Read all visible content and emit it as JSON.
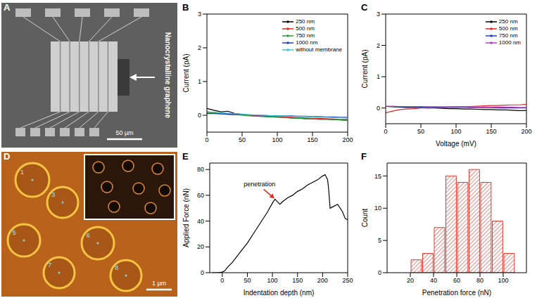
{
  "chart_data": [
    {
      "panel": "B",
      "type": "line",
      "ylabel": "Current (pA)",
      "xlim": [
        0,
        200
      ],
      "xticks": [
        0,
        50,
        100,
        150,
        200
      ],
      "ylim": [
        -0.5,
        3
      ],
      "yticks": [
        0,
        1,
        2,
        3
      ],
      "legend": "upper right",
      "x": [
        0,
        10,
        20,
        30,
        40,
        50,
        60,
        70,
        80,
        90,
        100,
        110,
        120,
        130,
        140,
        150,
        160,
        170,
        180,
        190,
        200
      ],
      "series": [
        {
          "name": "250 nm",
          "color": "#000000",
          "values": [
            0.2,
            0.15,
            0.1,
            0.12,
            0.05,
            0.03,
            0.0,
            -0.02,
            -0.03,
            -0.05,
            -0.05,
            -0.06,
            -0.08,
            -0.08,
            -0.1,
            -0.1,
            -0.12,
            -0.12,
            -0.13,
            -0.14,
            -0.15
          ]
        },
        {
          "name": "500 nm",
          "color": "#e8251f",
          "values": [
            0.1,
            0.08,
            0.06,
            0.05,
            0.04,
            0.02,
            0.0,
            -0.01,
            -0.02,
            -0.03,
            -0.04,
            -0.05,
            -0.06,
            -0.07,
            -0.08,
            -0.09,
            -0.09,
            -0.1,
            -0.11,
            -0.12,
            -0.12
          ]
        },
        {
          "name": "750 nm",
          "color": "#2e9e3a",
          "values": [
            0.08,
            0.07,
            0.05,
            0.03,
            0.02,
            0.0,
            -0.02,
            -0.03,
            -0.04,
            -0.05,
            -0.06,
            -0.07,
            -0.08,
            -0.09,
            -0.1,
            -0.11,
            -0.12,
            -0.12,
            -0.13,
            -0.14,
            -0.15
          ]
        },
        {
          "name": "1000 nm",
          "color": "#1f3fbf",
          "values": [
            0.05,
            0.05,
            0.04,
            0.03,
            0.02,
            0.02,
            0.01,
            0.0,
            0.0,
            -0.01,
            -0.01,
            -0.02,
            -0.02,
            -0.03,
            -0.03,
            -0.04,
            -0.04,
            -0.05,
            -0.05,
            -0.06,
            -0.06
          ]
        },
        {
          "name": "without membrane",
          "color": "#35c6d6",
          "values": [
            0.1,
            0.09,
            0.07,
            0.06,
            0.05,
            0.03,
            0.02,
            0.01,
            0.0,
            -0.01,
            -0.02,
            -0.02,
            -0.03,
            -0.04,
            -0.04,
            -0.05,
            -0.06,
            -0.06,
            -0.07,
            -0.07,
            -0.08
          ]
        }
      ]
    },
    {
      "panel": "C",
      "type": "line",
      "xlabel": "Voltage (mV)",
      "ylabel": "Current (pA)",
      "xlim": [
        0,
        200
      ],
      "xticks": [
        0,
        50,
        100,
        150,
        200
      ],
      "ylim": [
        -0.5,
        3
      ],
      "yticks": [
        0,
        1,
        2,
        3
      ],
      "legend": "upper right",
      "x": [
        0,
        10,
        20,
        30,
        40,
        50,
        60,
        70,
        80,
        90,
        100,
        110,
        120,
        130,
        140,
        150,
        160,
        170,
        180,
        190,
        200
      ],
      "series": [
        {
          "name": "250 nm",
          "color": "#000000",
          "values": [
            0.05,
            0.04,
            0.03,
            0.02,
            0.02,
            0.01,
            0.0,
            0.0,
            -0.01,
            -0.02,
            -0.02,
            -0.03,
            -0.03,
            -0.04,
            -0.05,
            -0.05,
            -0.06,
            -0.06,
            -0.07,
            -0.08,
            -0.08
          ]
        },
        {
          "name": "500 nm",
          "color": "#e8251f",
          "values": [
            -0.15,
            -0.1,
            -0.05,
            -0.03,
            -0.02,
            0.0,
            0.0,
            0.01,
            0.02,
            0.03,
            0.04,
            0.05,
            0.05,
            0.06,
            0.07,
            0.08,
            0.08,
            0.09,
            0.1,
            0.1,
            0.12
          ]
        },
        {
          "name": "750 nm",
          "color": "#1f3fbf",
          "values": [
            0.05,
            0.05,
            0.04,
            0.04,
            0.04,
            0.03,
            0.03,
            0.03,
            0.02,
            0.02,
            0.02,
            0.02,
            0.01,
            0.01,
            0.01,
            0.01,
            0.0,
            0.0,
            0.0,
            0.0,
            0.0
          ]
        },
        {
          "name": "1000 nm",
          "color": "#b23fc4",
          "values": [
            0.06,
            0.06,
            0.05,
            0.05,
            0.05,
            0.05,
            0.04,
            0.04,
            0.04,
            0.04,
            0.04,
            0.04,
            0.03,
            0.03,
            0.03,
            0.03,
            0.03,
            0.03,
            0.03,
            0.02,
            0.02
          ]
        }
      ]
    },
    {
      "panel": "E",
      "type": "line",
      "xlabel": "Indentation depth (nm)",
      "ylabel": "Applied Force (nN)",
      "xlim": [
        -25,
        250
      ],
      "xticks": [
        0,
        50,
        100,
        150,
        200,
        250
      ],
      "ylim": [
        0,
        85
      ],
      "yticks": [
        0,
        20,
        40,
        60,
        80
      ],
      "color": "#000000",
      "x": [
        -20,
        -10,
        0,
        5,
        10,
        20,
        30,
        40,
        50,
        60,
        70,
        80,
        90,
        100,
        105,
        110,
        115,
        120,
        130,
        140,
        150,
        160,
        170,
        180,
        190,
        200,
        205,
        210,
        212,
        215,
        220,
        230,
        240,
        245,
        250
      ],
      "values": [
        0,
        0,
        0.5,
        1.5,
        4,
        8,
        13,
        18,
        23,
        29,
        35,
        41,
        47,
        54,
        57,
        55,
        53,
        55,
        58,
        60,
        63,
        65,
        68,
        70,
        72,
        75,
        76,
        72,
        65,
        50,
        51,
        53,
        47,
        42,
        41
      ],
      "annotations": [
        {
          "text": "penetration",
          "x": 105,
          "y": 57,
          "color": "#e8251f"
        }
      ]
    },
    {
      "panel": "F",
      "type": "histogram",
      "xlabel": "Penetration force (nN)",
      "ylabel": "Count",
      "bins": [
        20,
        30,
        40,
        50,
        60,
        70,
        80,
        90,
        100,
        110
      ],
      "counts": [
        2,
        3,
        7,
        15,
        14,
        16,
        14,
        8,
        3
      ],
      "color": "#e03a2f",
      "xlim": [
        0,
        120
      ],
      "xticks": [
        20,
        40,
        60,
        80,
        100
      ],
      "ylim": [
        0,
        17
      ],
      "yticks": [
        0,
        5,
        10,
        15
      ]
    }
  ],
  "images": [
    {
      "panel": "A",
      "type": "image",
      "label": "Nanocrystalline graphene",
      "scale_bar": "50 µm"
    },
    {
      "panel": "D",
      "type": "image",
      "labels": [
        "1",
        "3",
        "5",
        "6",
        "7",
        "8"
      ],
      "scale_bar": "1 µm"
    }
  ]
}
